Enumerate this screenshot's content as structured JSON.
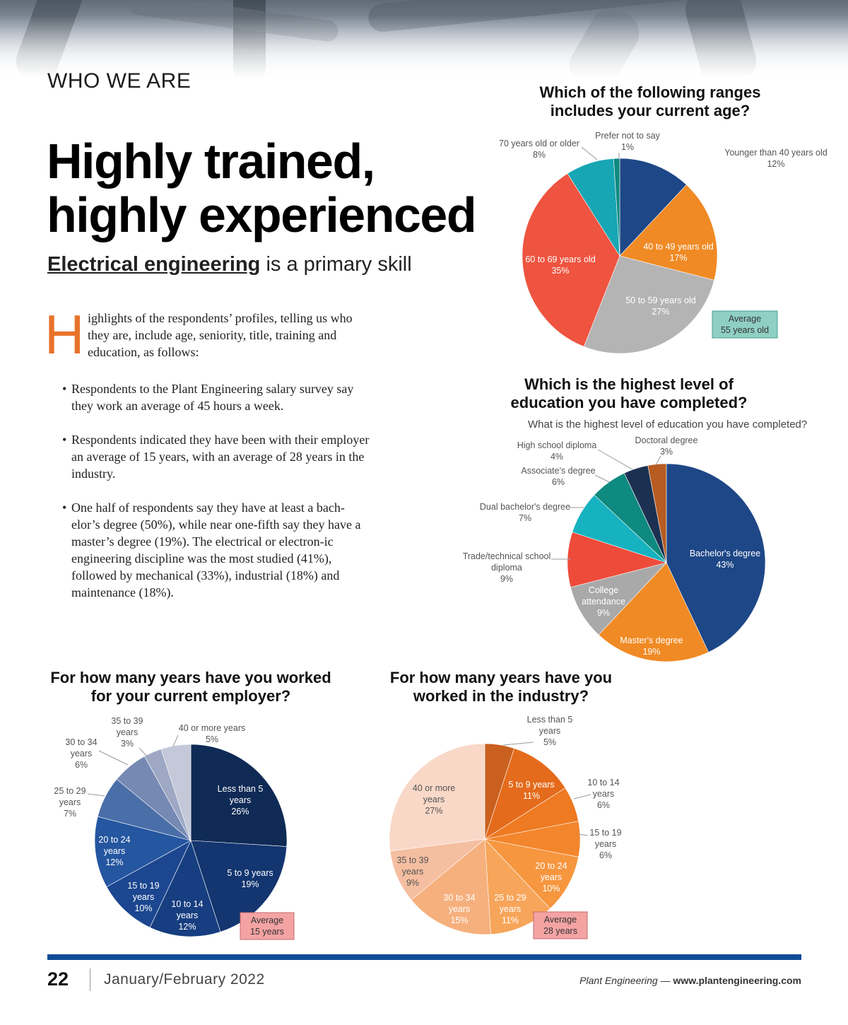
{
  "section_label": "WHO WE ARE",
  "headline": {
    "line1": "Highly trained,",
    "line2": "highly experienced"
  },
  "subhead": {
    "key": "Electrical engineering",
    "rest": " is a primary skill"
  },
  "intro": {
    "dropcap": "H",
    "text": "ighlights of the respondents’ profiles, telling us who they are, include age, seniority, title, training and education, as follows:"
  },
  "bullets": [
    "Respondents to the Plant Engineering salary survey say they work an average of 45 hours a week.",
    "Respondents indicated they have been with their employer an average of 15 years, with an average of 28 years in the industry.",
    "One half of respondents say they have at least a bach-elor’s degree (50%), while near one-fifth say they have a master’s degree (19%).  The electrical or electron-ic engineering discipline was the most studied (41%), followed by mechanical (33%), industrial (18%) and maintenance (18%)."
  ],
  "footer": {
    "page_number": "22",
    "issue": "January/February 2022",
    "publication": "Plant Engineering",
    "separator": " — ",
    "url": "www.plantengineering.com"
  },
  "chart_data": [
    {
      "type": "pie",
      "title": "Which of the following ranges includes your current age?",
      "slices": [
        {
          "label": "Younger than 40 years old",
          "value": 12,
          "pct": "12%",
          "color": "#1e4787"
        },
        {
          "label": "40 to 49 years old",
          "value": 17,
          "pct": "17%",
          "color": "#f08a24"
        },
        {
          "label": "50 to 59 years old",
          "value": 27,
          "pct": "27%",
          "color": "#b4b4b4"
        },
        {
          "label": "60 to 69 years old",
          "value": 35,
          "pct": "35%",
          "color": "#ee5440"
        },
        {
          "label": "70 years old or older",
          "value": 8,
          "pct": "8%",
          "color": "#17a6b3"
        },
        {
          "label": "Prefer not to say",
          "value": 1,
          "pct": "1%",
          "color": "#0f8a80"
        }
      ],
      "average": {
        "label": "Average",
        "value": "55 years old",
        "bg": "#8fcfc4",
        "border": "#4a9c92"
      }
    },
    {
      "type": "pie",
      "title": "Which is the highest level of education you have completed?",
      "subtitle": "What is the highest level of education you have completed?",
      "slices": [
        {
          "label": "Bachelor's degree",
          "value": 43,
          "pct": "43%",
          "color": "#1e4787"
        },
        {
          "label": "Master's degree",
          "value": 19,
          "pct": "19%",
          "color": "#f08a24"
        },
        {
          "label": "College attendance",
          "value": 9,
          "pct": "9%",
          "color": "#a9a9a9"
        },
        {
          "label": "Trade/technical school diploma",
          "value": 9,
          "pct": "9%",
          "color": "#ee4b3b"
        },
        {
          "label": "Dual bachelor's degree",
          "value": 7,
          "pct": "7%",
          "color": "#17b2c0"
        },
        {
          "label": "Associate's degree",
          "value": 6,
          "pct": "6%",
          "color": "#0f8a80"
        },
        {
          "label": "High school diploma",
          "value": 4,
          "pct": "4%",
          "color": "#1c3152"
        },
        {
          "label": "Doctoral degree",
          "value": 3,
          "pct": "3%",
          "color": "#b75c22"
        }
      ]
    },
    {
      "type": "pie",
      "title": "For how many years have you worked for your current employer?",
      "slices": [
        {
          "label": "Less than 5 years",
          "value": 26,
          "pct": "26%",
          "color": "#0f2a55"
        },
        {
          "label": "5 to 9 years",
          "value": 19,
          "pct": "19%",
          "color": "#133570"
        },
        {
          "label": "10 to 14 years",
          "value": 12,
          "pct": "12%",
          "color": "#173e80"
        },
        {
          "label": "15 to 19 years",
          "value": 10,
          "pct": "10%",
          "color": "#1c4690"
        },
        {
          "label": "20 to 24 years",
          "value": 12,
          "pct": "12%",
          "color": "#2556a0"
        },
        {
          "label": "25 to 29 years",
          "value": 7,
          "pct": "7%",
          "color": "#4a6ea8"
        },
        {
          "label": "30 to 34 years",
          "value": 6,
          "pct": "6%",
          "color": "#7589b3"
        },
        {
          "label": "35 to 39 years",
          "value": 3,
          "pct": "3%",
          "color": "#9ea8c4"
        },
        {
          "label": "40 or more years",
          "value": 5,
          "pct": "5%",
          "color": "#c3c9d8"
        }
      ],
      "average": {
        "label": "Average",
        "value": "15 years",
        "bg": "#f4a3a3",
        "border": "#c46b6b"
      }
    },
    {
      "type": "pie",
      "title": "For how many years have you worked in the industry?",
      "slices": [
        {
          "label": "Less than 5 years",
          "value": 5,
          "pct": "5%",
          "color": "#c9601f"
        },
        {
          "label": "5 to 9 years",
          "value": 11,
          "pct": "11%",
          "color": "#e56b1c"
        },
        {
          "label": "10 to 14 years",
          "value": 6,
          "pct": "6%",
          "color": "#ee7a22"
        },
        {
          "label": "15 to 19 years",
          "value": 6,
          "pct": "6%",
          "color": "#f3862c"
        },
        {
          "label": "20 to 24 years",
          "value": 10,
          "pct": "10%",
          "color": "#f6963f"
        },
        {
          "label": "25 to 29 years",
          "value": 11,
          "pct": "11%",
          "color": "#f7a55a"
        },
        {
          "label": "30 to 34 years",
          "value": 15,
          "pct": "15%",
          "color": "#f6b07e"
        },
        {
          "label": "35 to 39 years",
          "value": 9,
          "pct": "9%",
          "color": "#f5bea0"
        },
        {
          "label": "40 or more years",
          "value": 27,
          "pct": "27%",
          "color": "#f9d8c8"
        }
      ],
      "average": {
        "label": "Average",
        "value": "28 years",
        "bg": "#f4a3a3",
        "border": "#c46b6b"
      }
    }
  ]
}
